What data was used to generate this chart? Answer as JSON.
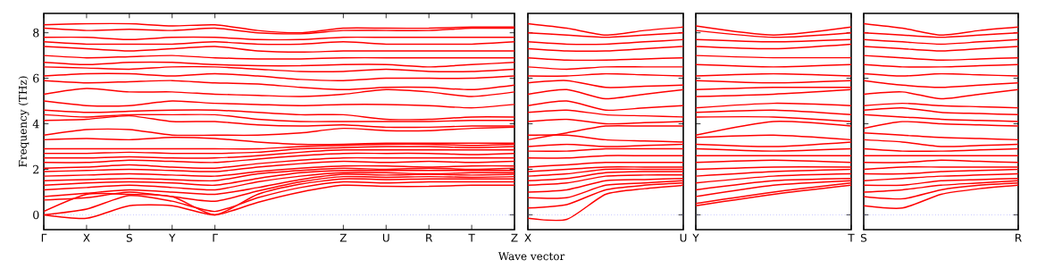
{
  "chart_data": [
    {
      "type": "line",
      "ylabel": "Frequency (THz)",
      "xlabel": "Wave vector",
      "categories": [
        "Γ",
        "X",
        "S",
        "Y",
        "Γ",
        null,
        null,
        "Z",
        "U",
        "R",
        "T",
        "Z"
      ],
      "ylim": [
        -0.65,
        8.85
      ],
      "yticks": [
        0,
        2,
        4,
        6,
        8
      ],
      "ref_lines": [
        {
          "axis": "y",
          "value": 0,
          "color": "#8080ff",
          "line_style": "dotted"
        }
      ],
      "series": [
        {
          "color": "#ff0000",
          "values": [
            0,
            -0.15,
            0.4,
            0.4,
            0,
            0.55,
            1.0,
            1.3,
            1.25,
            1.25,
            1.3,
            1.3
          ]
        },
        {
          "color": "#ff0000",
          "values": [
            0,
            0.25,
            0.85,
            0.6,
            0.15,
            0.75,
            1.2,
            1.45,
            1.4,
            1.45,
            1.45,
            1.45
          ]
        },
        {
          "color": "#ff0000",
          "values": [
            0.15,
            0.9,
            0.9,
            0.8,
            0,
            0.9,
            1.35,
            1.58,
            1.55,
            1.58,
            1.58,
            1.58
          ]
        },
        {
          "color": "#ff0000",
          "values": [
            0.65,
            0.75,
            1.0,
            0.8,
            0.6,
            1.05,
            1.45,
            1.68,
            1.65,
            1.68,
            1.65,
            1.68
          ]
        },
        {
          "color": "#ff0000",
          "values": [
            0.8,
            0.95,
            1.1,
            1.0,
            0.9,
            1.2,
            1.55,
            1.78,
            1.75,
            1.78,
            1.75,
            1.78
          ]
        },
        {
          "color": "#ff0000",
          "values": [
            1.1,
            1.2,
            1.3,
            1.2,
            1.1,
            1.45,
            1.7,
            1.85,
            1.85,
            1.8,
            1.85,
            1.85
          ]
        },
        {
          "color": "#ff0000",
          "values": [
            1.3,
            1.4,
            1.45,
            1.4,
            1.3,
            1.6,
            1.85,
            1.95,
            1.95,
            1.95,
            1.95,
            1.95
          ]
        },
        {
          "color": "#ff0000",
          "values": [
            1.5,
            1.55,
            1.6,
            1.55,
            1.5,
            1.8,
            1.95,
            2.05,
            2.0,
            2.05,
            2.0,
            2.05
          ]
        },
        {
          "color": "#ff0000",
          "values": [
            1.7,
            1.75,
            1.8,
            1.75,
            1.7,
            1.9,
            2.05,
            2.15,
            2.15,
            2.1,
            2.15,
            2.15
          ]
        },
        {
          "color": "#ff0000",
          "values": [
            1.9,
            1.95,
            2.0,
            1.95,
            1.9,
            2.1,
            2.25,
            2.35,
            2.3,
            2.35,
            2.3,
            2.35
          ]
        },
        {
          "color": "#ff0000",
          "values": [
            2.05,
            2.1,
            2.2,
            2.1,
            2.05,
            2.25,
            2.4,
            2.5,
            2.5,
            2.5,
            2.5,
            2.5
          ]
        },
        {
          "color": "#ff0000",
          "values": [
            2.3,
            2.3,
            2.4,
            2.35,
            2.3,
            2.45,
            2.6,
            2.7,
            2.7,
            2.7,
            2.65,
            2.7
          ]
        },
        {
          "color": "#ff0000",
          "values": [
            2.5,
            2.5,
            2.55,
            2.5,
            2.5,
            2.6,
            2.75,
            2.85,
            2.85,
            2.85,
            2.85,
            2.85
          ]
        },
        {
          "color": "#ff0000",
          "values": [
            2.7,
            2.7,
            2.75,
            2.7,
            2.7,
            2.75,
            2.9,
            2.95,
            3.0,
            3.0,
            2.95,
            3.0
          ]
        },
        {
          "color": "#ff0000",
          "values": [
            2.9,
            2.9,
            2.9,
            2.9,
            2.9,
            2.9,
            3.0,
            3.05,
            3.1,
            3.1,
            3.05,
            3.1
          ]
        },
        {
          "color": "#ff0000",
          "values": [
            3.3,
            3.35,
            3.3,
            3.4,
            3.35,
            3.2,
            3.1,
            3.1,
            3.15,
            3.15,
            3.15,
            3.15
          ]
        },
        {
          "color": "#ff0000",
          "values": [
            3.5,
            3.75,
            3.75,
            3.5,
            3.5,
            3.5,
            3.6,
            3.8,
            3.7,
            3.7,
            3.8,
            3.85
          ]
        },
        {
          "color": "#ff0000",
          "values": [
            4.15,
            4.2,
            4.35,
            4.1,
            4.1,
            3.95,
            3.9,
            3.95,
            3.85,
            3.85,
            3.9,
            3.9
          ]
        },
        {
          "color": "#ff0000",
          "values": [
            4.4,
            4.3,
            4.4,
            4.4,
            4.4,
            4.2,
            4.1,
            4.1,
            4.1,
            4.1,
            4.15,
            4.15
          ]
        },
        {
          "color": "#ff0000",
          "values": [
            4.6,
            4.5,
            4.55,
            4.6,
            4.6,
            4.5,
            4.4,
            4.4,
            4.2,
            4.2,
            4.3,
            4.3
          ]
        },
        {
          "color": "#ff0000",
          "values": [
            5.0,
            4.8,
            4.8,
            5.0,
            4.9,
            4.85,
            4.8,
            4.85,
            4.85,
            4.8,
            4.7,
            4.85
          ]
        },
        {
          "color": "#ff0000",
          "values": [
            5.3,
            5.55,
            5.4,
            5.4,
            5.3,
            5.25,
            5.2,
            5.3,
            5.5,
            5.4,
            5.2,
            5.4
          ]
        },
        {
          "color": "#ff0000",
          "values": [
            5.9,
            5.8,
            5.85,
            5.9,
            5.8,
            5.75,
            5.6,
            5.5,
            5.6,
            5.6,
            5.5,
            5.7
          ]
        },
        {
          "color": "#ff0000",
          "values": [
            6.1,
            6.2,
            6.2,
            6.1,
            6.2,
            6.1,
            5.95,
            5.9,
            6.0,
            6.0,
            6.0,
            6.1
          ]
        },
        {
          "color": "#ff0000",
          "values": [
            6.5,
            6.45,
            6.4,
            6.5,
            6.5,
            6.4,
            6.3,
            6.3,
            6.4,
            6.3,
            6.3,
            6.4
          ]
        },
        {
          "color": "#ff0000",
          "values": [
            6.7,
            6.6,
            6.7,
            6.7,
            6.6,
            6.55,
            6.55,
            6.6,
            6.6,
            6.5,
            6.6,
            6.7
          ]
        },
        {
          "color": "#ff0000",
          "values": [
            7.0,
            6.9,
            6.95,
            7.0,
            6.9,
            6.85,
            6.85,
            6.9,
            6.9,
            6.9,
            6.9,
            6.9
          ]
        },
        {
          "color": "#ff0000",
          "values": [
            7.4,
            7.3,
            7.2,
            7.3,
            7.4,
            7.2,
            7.15,
            7.2,
            7.2,
            7.2,
            7.2,
            7.2
          ]
        },
        {
          "color": "#ff0000",
          "values": [
            7.6,
            7.5,
            7.5,
            7.5,
            7.6,
            7.5,
            7.5,
            7.6,
            7.5,
            7.5,
            7.5,
            7.6
          ]
        },
        {
          "color": "#ff0000",
          "values": [
            7.8,
            7.8,
            7.7,
            7.8,
            7.8,
            7.7,
            7.7,
            7.8,
            7.8,
            7.8,
            7.8,
            7.8
          ]
        },
        {
          "color": "#ff0000",
          "values": [
            8.2,
            8.1,
            8.15,
            8.1,
            8.2,
            8.0,
            7.95,
            8.1,
            8.1,
            8.1,
            8.2,
            8.2
          ]
        },
        {
          "color": "#ff0000",
          "values": [
            8.35,
            8.4,
            8.4,
            8.3,
            8.35,
            8.1,
            8.0,
            8.2,
            8.2,
            8.2,
            8.25,
            8.25
          ]
        }
      ]
    },
    {
      "type": "line",
      "tick_labels": "x",
      "categories": [
        "X",
        null,
        null,
        null,
        "U"
      ],
      "ylim": [
        -0.65,
        8.85
      ],
      "yticks": [
        {
          "value": 0,
          "label": null
        },
        {
          "value": 2,
          "label": null
        },
        {
          "value": 4,
          "label": null
        },
        {
          "value": 6,
          "label": null
        },
        {
          "value": 8,
          "label": null
        }
      ],
      "ref_lines": [
        {
          "axis": "y",
          "value": 0,
          "color": "#8080ff",
          "line_style": "dotted"
        }
      ],
      "series": [
        {
          "color": "#ff0000",
          "values": [
            -0.15,
            -0.2,
            0.9,
            1.15,
            1.3
          ]
        },
        {
          "color": "#ff0000",
          "values": [
            0.3,
            0.45,
            1.1,
            1.3,
            1.4
          ]
        },
        {
          "color": "#ff0000",
          "values": [
            0.75,
            0.75,
            1.3,
            1.4,
            1.5
          ]
        },
        {
          "color": "#ff0000",
          "values": [
            1.0,
            1.1,
            1.5,
            1.55,
            1.6
          ]
        },
        {
          "color": "#ff0000",
          "values": [
            1.3,
            1.4,
            1.7,
            1.75,
            1.75
          ]
        },
        {
          "color": "#ff0000",
          "values": [
            1.5,
            1.6,
            1.85,
            1.9,
            1.9
          ]
        },
        {
          "color": "#ff0000",
          "values": [
            1.7,
            1.8,
            2.0,
            2.0,
            2.0
          ]
        },
        {
          "color": "#ff0000",
          "values": [
            1.9,
            2.0,
            2.1,
            2.1,
            2.1
          ]
        },
        {
          "color": "#ff0000",
          "values": [
            2.1,
            2.2,
            2.3,
            2.3,
            2.3
          ]
        },
        {
          "color": "#ff0000",
          "values": [
            2.5,
            2.5,
            2.6,
            2.6,
            2.6
          ]
        },
        {
          "color": "#ff0000",
          "values": [
            2.8,
            2.8,
            2.9,
            2.9,
            2.9
          ]
        },
        {
          "color": "#ff0000",
          "values": [
            3.0,
            3.1,
            3.0,
            3.05,
            3.1
          ]
        },
        {
          "color": "#ff0000",
          "values": [
            3.5,
            3.5,
            3.3,
            3.25,
            3.2
          ]
        },
        {
          "color": "#ff0000",
          "values": [
            3.3,
            3.6,
            3.9,
            3.9,
            3.9
          ]
        },
        {
          "color": "#ff0000",
          "values": [
            4.1,
            4.2,
            4.0,
            4.05,
            4.1
          ]
        },
        {
          "color": "#ff0000",
          "values": [
            4.5,
            4.6,
            4.4,
            4.35,
            4.3
          ]
        },
        {
          "color": "#ff0000",
          "values": [
            4.8,
            5.0,
            4.6,
            4.7,
            4.8
          ]
        },
        {
          "color": "#ff0000",
          "values": [
            5.3,
            5.5,
            5.1,
            5.3,
            5.5
          ]
        },
        {
          "color": "#ff0000",
          "values": [
            5.8,
            5.9,
            5.6,
            5.65,
            5.7
          ]
        },
        {
          "color": "#ff0000",
          "values": [
            6.1,
            6.1,
            6.2,
            6.15,
            6.1
          ]
        },
        {
          "color": "#ff0000",
          "values": [
            6.5,
            6.4,
            6.5,
            6.5,
            6.5
          ]
        },
        {
          "color": "#ff0000",
          "values": [
            6.9,
            6.8,
            6.8,
            6.85,
            6.9
          ]
        },
        {
          "color": "#ff0000",
          "values": [
            7.3,
            7.2,
            7.2,
            7.3,
            7.4
          ]
        },
        {
          "color": "#ff0000",
          "values": [
            7.6,
            7.5,
            7.5,
            7.6,
            7.7
          ]
        },
        {
          "color": "#ff0000",
          "values": [
            8.0,
            7.9,
            7.8,
            7.9,
            8.0
          ]
        },
        {
          "color": "#ff0000",
          "values": [
            8.4,
            8.2,
            7.9,
            8.1,
            8.25
          ]
        }
      ]
    },
    {
      "type": "line",
      "tick_labels": "x",
      "categories": [
        "Y",
        null,
        "T"
      ],
      "ylim": [
        -0.65,
        8.85
      ],
      "yticks": [
        {
          "value": 0,
          "label": null
        },
        {
          "value": 2,
          "label": null
        },
        {
          "value": 4,
          "label": null
        },
        {
          "value": 6,
          "label": null
        },
        {
          "value": 8,
          "label": null
        }
      ],
      "ref_lines": [
        {
          "axis": "y",
          "value": 0,
          "color": "#8080ff",
          "line_style": "dotted"
        }
      ],
      "series": [
        {
          "color": "#ff0000",
          "values": [
            0.4,
            0.9,
            1.3
          ]
        },
        {
          "color": "#ff0000",
          "values": [
            0.5,
            1.0,
            1.4
          ]
        },
        {
          "color": "#ff0000",
          "values": [
            0.8,
            1.3,
            1.5
          ]
        },
        {
          "color": "#ff0000",
          "values": [
            1.1,
            1.5,
            1.6
          ]
        },
        {
          "color": "#ff0000",
          "values": [
            1.4,
            1.7,
            1.8
          ]
        },
        {
          "color": "#ff0000",
          "values": [
            1.7,
            1.9,
            2.0
          ]
        },
        {
          "color": "#ff0000",
          "values": [
            2.0,
            2.1,
            2.1
          ]
        },
        {
          "color": "#ff0000",
          "values": [
            2.3,
            2.4,
            2.3
          ]
        },
        {
          "color": "#ff0000",
          "values": [
            2.6,
            2.6,
            2.6
          ]
        },
        {
          "color": "#ff0000",
          "values": [
            2.9,
            2.8,
            2.9
          ]
        },
        {
          "color": "#ff0000",
          "values": [
            3.1,
            3.0,
            3.2
          ]
        },
        {
          "color": "#ff0000",
          "values": [
            3.4,
            3.5,
            3.3
          ]
        },
        {
          "color": "#ff0000",
          "values": [
            3.5,
            4.1,
            3.9
          ]
        },
        {
          "color": "#ff0000",
          "values": [
            4.3,
            4.3,
            4.1
          ]
        },
        {
          "color": "#ff0000",
          "values": [
            4.5,
            4.6,
            4.4
          ]
        },
        {
          "color": "#ff0000",
          "values": [
            4.7,
            4.9,
            4.8
          ]
        },
        {
          "color": "#ff0000",
          "values": [
            5.2,
            5.3,
            5.5
          ]
        },
        {
          "color": "#ff0000",
          "values": [
            5.5,
            5.6,
            5.6
          ]
        },
        {
          "color": "#ff0000",
          "values": [
            5.9,
            5.8,
            5.9
          ]
        },
        {
          "color": "#ff0000",
          "values": [
            6.1,
            6.2,
            6.1
          ]
        },
        {
          "color": "#ff0000",
          "values": [
            6.6,
            6.5,
            6.6
          ]
        },
        {
          "color": "#ff0000",
          "values": [
            7.0,
            6.9,
            6.9
          ]
        },
        {
          "color": "#ff0000",
          "values": [
            7.4,
            7.3,
            7.5
          ]
        },
        {
          "color": "#ff0000",
          "values": [
            7.7,
            7.6,
            7.7
          ]
        },
        {
          "color": "#ff0000",
          "values": [
            8.1,
            7.8,
            8.0
          ]
        },
        {
          "color": "#ff0000",
          "values": [
            8.3,
            7.9,
            8.25
          ]
        }
      ]
    },
    {
      "type": "line",
      "tick_labels": "x",
      "categories": [
        "S",
        null,
        null,
        null,
        "R"
      ],
      "ylim": [
        -0.65,
        8.85
      ],
      "yticks": [
        {
          "value": 0,
          "label": null
        },
        {
          "value": 2,
          "label": null
        },
        {
          "value": 4,
          "label": null
        },
        {
          "value": 6,
          "label": null
        },
        {
          "value": 8,
          "label": null
        }
      ],
      "ref_lines": [
        {
          "axis": "y",
          "value": 0,
          "color": "#8080ff",
          "line_style": "dotted"
        }
      ],
      "series": [
        {
          "color": "#ff0000",
          "values": [
            0.4,
            0.3,
            0.9,
            1.15,
            1.3
          ]
        },
        {
          "color": "#ff0000",
          "values": [
            0.8,
            0.7,
            1.1,
            1.3,
            1.4
          ]
        },
        {
          "color": "#ff0000",
          "values": [
            1.0,
            1.1,
            1.3,
            1.4,
            1.5
          ]
        },
        {
          "color": "#ff0000",
          "values": [
            1.3,
            1.3,
            1.5,
            1.55,
            1.6
          ]
        },
        {
          "color": "#ff0000",
          "values": [
            1.5,
            1.6,
            1.7,
            1.75,
            1.8
          ]
        },
        {
          "color": "#ff0000",
          "values": [
            1.8,
            1.8,
            1.9,
            1.95,
            2.0
          ]
        },
        {
          "color": "#ff0000",
          "values": [
            2.0,
            2.1,
            2.1,
            2.1,
            2.1
          ]
        },
        {
          "color": "#ff0000",
          "values": [
            2.3,
            2.3,
            2.4,
            2.35,
            2.3
          ]
        },
        {
          "color": "#ff0000",
          "values": [
            2.6,
            2.6,
            2.6,
            2.6,
            2.6
          ]
        },
        {
          "color": "#ff0000",
          "values": [
            2.9,
            2.8,
            2.8,
            2.85,
            2.9
          ]
        },
        {
          "color": "#ff0000",
          "values": [
            3.3,
            3.2,
            3.0,
            3.05,
            3.1
          ]
        },
        {
          "color": "#ff0000",
          "values": [
            3.6,
            3.5,
            3.4,
            3.35,
            3.3
          ]
        },
        {
          "color": "#ff0000",
          "values": [
            3.8,
            4.1,
            4.0,
            3.95,
            3.9
          ]
        },
        {
          "color": "#ff0000",
          "values": [
            4.4,
            4.3,
            4.2,
            4.15,
            4.1
          ]
        },
        {
          "color": "#ff0000",
          "values": [
            4.6,
            4.7,
            4.5,
            4.45,
            4.4
          ]
        },
        {
          "color": "#ff0000",
          "values": [
            4.8,
            4.9,
            4.8,
            4.75,
            4.7
          ]
        },
        {
          "color": "#ff0000",
          "values": [
            5.3,
            5.4,
            5.1,
            5.3,
            5.5
          ]
        },
        {
          "color": "#ff0000",
          "values": [
            5.9,
            5.7,
            5.6,
            5.7,
            5.8
          ]
        },
        {
          "color": "#ff0000",
          "values": [
            6.2,
            6.1,
            6.2,
            6.15,
            6.1
          ]
        },
        {
          "color": "#ff0000",
          "values": [
            6.6,
            6.5,
            6.5,
            6.55,
            6.6
          ]
        },
        {
          "color": "#ff0000",
          "values": [
            7.0,
            6.9,
            6.8,
            6.85,
            6.9
          ]
        },
        {
          "color": "#ff0000",
          "values": [
            7.4,
            7.3,
            7.2,
            7.3,
            7.4
          ]
        },
        {
          "color": "#ff0000",
          "values": [
            7.7,
            7.6,
            7.5,
            7.6,
            7.7
          ]
        },
        {
          "color": "#ff0000",
          "values": [
            8.0,
            7.9,
            7.8,
            7.9,
            8.0
          ]
        },
        {
          "color": "#ff0000",
          "values": [
            8.4,
            8.2,
            7.9,
            8.1,
            8.25
          ]
        }
      ]
    }
  ]
}
